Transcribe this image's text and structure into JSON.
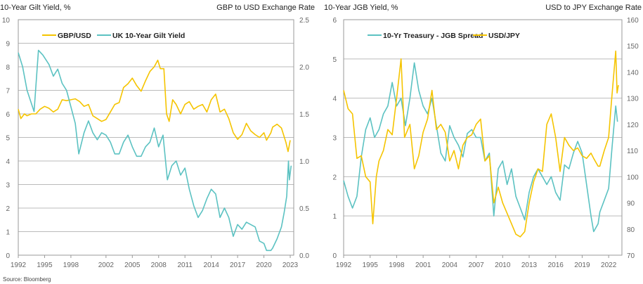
{
  "source": "Source: Bloomberg",
  "colors": {
    "yellow": "#F5C400",
    "teal": "#5CC2C2",
    "grid": "#BBBBBB",
    "axis": "#999999",
    "tick": "#666666"
  },
  "chart_data": [
    {
      "type": "line",
      "left_axis_title": "10-Year Gilt Yield, %",
      "right_axis_title": "GBP to USD Exchange Rate",
      "xlim": [
        1992,
        2023.4
      ],
      "ylim_left": [
        0,
        10
      ],
      "ylim_right": [
        0,
        2.5
      ],
      "x_ticks": [
        "1992",
        "1995",
        "1998",
        "2002",
        "2005",
        "2008",
        "2011",
        "2014",
        "2017",
        "2020",
        "2023"
      ],
      "y_ticks_left": [
        "0",
        "1",
        "2",
        "3",
        "4",
        "5",
        "6",
        "7",
        "8",
        "9",
        "10"
      ],
      "y_ticks_right": [
        "0.0",
        "0.5",
        "1.0",
        "1.5",
        "2.0",
        "2.5"
      ],
      "grid": true,
      "legend": "top-left",
      "series": [
        {
          "name": "GBP/USD",
          "axis": "right",
          "color": "yellow",
          "x": [
            1992,
            1992.3,
            1992.7,
            1993,
            1993.5,
            1994,
            1994.5,
            1995,
            1995.5,
            1996,
            1996.5,
            1997,
            1997.5,
            1998,
            1998.5,
            1999,
            1999.5,
            2000,
            2000.5,
            2001,
            2001.5,
            2002,
            2002.5,
            2003,
            2003.5,
            2004,
            2004.5,
            2005,
            2005.5,
            2006,
            2006.5,
            2007,
            2007.5,
            2007.9,
            2008.2,
            2008.6,
            2008.9,
            2009.2,
            2009.6,
            2010,
            2010.5,
            2011,
            2011.5,
            2012,
            2012.5,
            2013,
            2013.5,
            2014,
            2014.5,
            2015,
            2015.5,
            2016,
            2016.5,
            2017,
            2017.5,
            2018,
            2018.5,
            2019,
            2019.5,
            2020,
            2020.3,
            2020.8,
            2021,
            2021.5,
            2022,
            2022.5,
            2022.75,
            2023
          ],
          "y": [
            1.55,
            1.45,
            1.5,
            1.48,
            1.5,
            1.5,
            1.55,
            1.58,
            1.56,
            1.52,
            1.55,
            1.65,
            1.64,
            1.65,
            1.66,
            1.63,
            1.58,
            1.6,
            1.48,
            1.45,
            1.42,
            1.44,
            1.52,
            1.6,
            1.62,
            1.78,
            1.82,
            1.88,
            1.8,
            1.74,
            1.85,
            1.95,
            2.0,
            2.07,
            1.98,
            1.98,
            1.5,
            1.42,
            1.65,
            1.6,
            1.5,
            1.6,
            1.63,
            1.55,
            1.58,
            1.6,
            1.52,
            1.65,
            1.71,
            1.52,
            1.55,
            1.45,
            1.3,
            1.23,
            1.28,
            1.4,
            1.32,
            1.28,
            1.25,
            1.3,
            1.22,
            1.3,
            1.36,
            1.39,
            1.35,
            1.2,
            1.1,
            1.22
          ]
        },
        {
          "name": "UK 10-Year Gilt Yield",
          "axis": "left",
          "color": "teal",
          "x": [
            1992,
            1992.5,
            1993,
            1993.8,
            1994.3,
            1994.8,
            1995.5,
            1996,
            1996.5,
            1997,
            1997.5,
            1998,
            1998.5,
            1998.9,
            1999.5,
            2000,
            2000.5,
            2001,
            2001.5,
            2002,
            2002.5,
            2003,
            2003.5,
            2004,
            2004.5,
            2005,
            2005.5,
            2006,
            2006.5,
            2007,
            2007.5,
            2008,
            2008.5,
            2009,
            2009.5,
            2010,
            2010.5,
            2011,
            2011.5,
            2012,
            2012.5,
            2013,
            2013.5,
            2014,
            2014.5,
            2015,
            2015.5,
            2016,
            2016.5,
            2017,
            2017.5,
            2018,
            2018.5,
            2019,
            2019.5,
            2020,
            2020.3,
            2020.8,
            2021,
            2021.5,
            2022,
            2022.3,
            2022.6,
            2022.8,
            2022.9,
            2023.1
          ],
          "y": [
            8.6,
            8.0,
            7.0,
            6.1,
            8.7,
            8.5,
            8.1,
            7.6,
            7.9,
            7.3,
            7.0,
            6.3,
            5.6,
            4.3,
            5.2,
            5.7,
            5.2,
            4.9,
            5.2,
            5.1,
            4.8,
            4.3,
            4.3,
            4.8,
            5.1,
            4.6,
            4.2,
            4.2,
            4.6,
            4.8,
            5.4,
            4.6,
            5.1,
            3.2,
            3.8,
            4.0,
            3.4,
            3.7,
            2.8,
            2.1,
            1.6,
            1.9,
            2.4,
            2.8,
            2.6,
            1.6,
            2.0,
            1.6,
            0.8,
            1.3,
            1.1,
            1.4,
            1.3,
            1.2,
            0.6,
            0.5,
            0.2,
            0.2,
            0.3,
            0.7,
            1.2,
            1.8,
            2.5,
            4.0,
            3.2,
            3.8
          ]
        }
      ]
    },
    {
      "type": "line",
      "left_axis_title": "10-Year JGB Yield, %",
      "right_axis_title": "USD to JPY Exchange Rate",
      "xlim": [
        1992,
        2023.5
      ],
      "ylim_left": [
        0,
        6
      ],
      "ylim_right": [
        70,
        160
      ],
      "x_ticks": [
        "1992",
        "1995",
        "1998",
        "2001",
        "2004",
        "2007",
        "2010",
        "2013",
        "2016",
        "2019",
        "2022"
      ],
      "y_ticks_left": [
        "0",
        "1",
        "2",
        "3",
        "4",
        "5",
        "6"
      ],
      "y_ticks_right": [
        "70",
        "80",
        "90",
        "100",
        "110",
        "120",
        "130",
        "140",
        "150",
        "160"
      ],
      "grid": true,
      "legend": "top-left",
      "series": [
        {
          "name": "10-Yr Treasury - JGB Spread",
          "axis": "left",
          "color": "teal",
          "x": [
            1992,
            1992.5,
            1993,
            1993.5,
            1994,
            1994.5,
            1995,
            1995.5,
            1996,
            1996.5,
            1997,
            1997.5,
            1998,
            1998.5,
            1999,
            1999.5,
            2000,
            2000.5,
            2001,
            2001.5,
            2002,
            2002.5,
            2003,
            2003.5,
            2004,
            2004.5,
            2005,
            2005.5,
            2006,
            2006.5,
            2007,
            2007.5,
            2008,
            2008.5,
            2009,
            2009.5,
            2010,
            2010.5,
            2011,
            2011.5,
            2012,
            2012.5,
            2013,
            2013.5,
            2014,
            2014.5,
            2015,
            2015.5,
            2016,
            2016.5,
            2017,
            2017.5,
            2018,
            2018.5,
            2019,
            2019.5,
            2020,
            2020.3,
            2020.8,
            2021,
            2021.5,
            2022,
            2022.4,
            2022.8,
            2023
          ],
          "y": [
            1.9,
            1.5,
            1.2,
            1.5,
            2.5,
            3.2,
            3.5,
            3.0,
            3.2,
            3.6,
            3.8,
            4.4,
            3.8,
            4.0,
            3.3,
            4.0,
            4.9,
            4.2,
            3.8,
            3.6,
            4.0,
            3.3,
            2.6,
            2.4,
            3.3,
            3.0,
            2.8,
            2.5,
            3.1,
            3.2,
            3.0,
            3.0,
            2.4,
            2.6,
            1.0,
            2.2,
            2.4,
            1.8,
            2.2,
            1.5,
            1.2,
            0.9,
            1.6,
            2.0,
            2.2,
            2.0,
            1.8,
            2.0,
            1.6,
            1.4,
            2.3,
            2.2,
            2.6,
            2.9,
            2.6,
            1.8,
            1.0,
            0.6,
            0.8,
            1.1,
            1.4,
            1.7,
            2.8,
            3.8,
            3.4
          ]
        },
        {
          "name": "USD/JPY",
          "axis": "right",
          "color": "yellow",
          "x": [
            1992,
            1992.5,
            1993,
            1993.5,
            1994,
            1994.5,
            1995,
            1995.3,
            1995.7,
            1996,
            1996.5,
            1997,
            1997.5,
            1998,
            1998.5,
            1998.9,
            1999.5,
            2000,
            2000.5,
            2001,
            2001.5,
            2002,
            2002.5,
            2003,
            2003.5,
            2004,
            2004.5,
            2005,
            2005.5,
            2006,
            2006.5,
            2007,
            2007.5,
            2008,
            2008.5,
            2009,
            2009.5,
            2010,
            2010.5,
            2011,
            2011.5,
            2012,
            2012.5,
            2013,
            2013.5,
            2014,
            2014.5,
            2015,
            2015.5,
            2016,
            2016.5,
            2017,
            2017.5,
            2018,
            2018.5,
            2019,
            2019.5,
            2020,
            2020.3,
            2020.8,
            2021,
            2021.5,
            2022,
            2022.3,
            2022.8,
            2022.95,
            2023.1
          ],
          "y": [
            133,
            126,
            124,
            107,
            108,
            100,
            98,
            82,
            100,
            106,
            110,
            118,
            116,
            130,
            145,
            115,
            120,
            103,
            108,
            117,
            122,
            133,
            118,
            120,
            117,
            106,
            110,
            103,
            112,
            115,
            116,
            120,
            122,
            106,
            108,
            90,
            96,
            90,
            86,
            82,
            78,
            77,
            79,
            90,
            98,
            103,
            102,
            120,
            124,
            115,
            102,
            115,
            112,
            110,
            111,
            108,
            107,
            109,
            107,
            104,
            104,
            110,
            115,
            128,
            148,
            132,
            135
          ]
        }
      ]
    }
  ]
}
